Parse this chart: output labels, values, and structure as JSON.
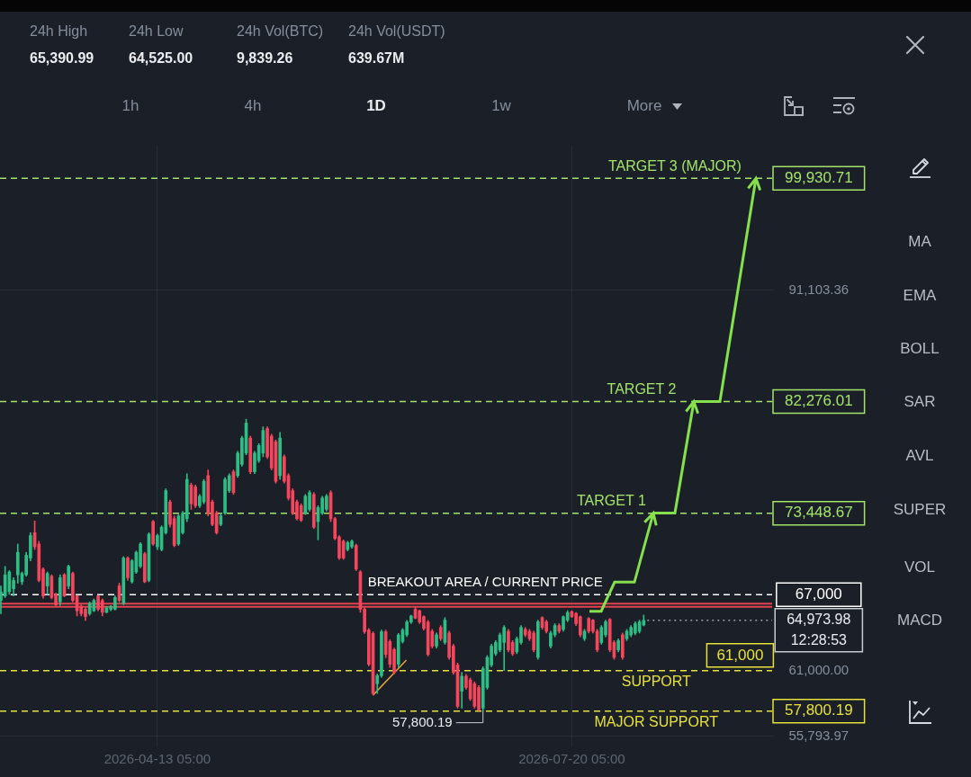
{
  "chart_data": {
    "type": "candlestick",
    "x": [
      "2026-03-07T05:00",
      "2026-03-08T05:00",
      "2026-03-09T05:00",
      "2026-03-10T05:00",
      "2026-03-11T05:00",
      "2026-03-12T05:00",
      "2026-03-13T05:00",
      "2026-03-14T05:00",
      "2026-03-15T05:00",
      "2026-03-16T05:00",
      "2026-03-17T05:00",
      "2026-03-18T05:00",
      "2026-03-19T05:00",
      "2026-03-20T05:00",
      "2026-03-21T05:00",
      "2026-03-22T05:00",
      "2026-03-23T05:00",
      "2026-03-24T05:00",
      "2026-03-25T05:00",
      "2026-03-26T05:00",
      "2026-03-27T05:00",
      "2026-03-28T05:00",
      "2026-03-29T05:00",
      "2026-03-30T05:00",
      "2026-03-31T05:00",
      "2026-04-01T05:00",
      "2026-04-02T05:00",
      "2026-04-03T05:00",
      "2026-04-04T05:00",
      "2026-04-05T05:00",
      "2026-04-06T05:00",
      "2026-04-07T05:00",
      "2026-04-08T05:00",
      "2026-04-09T05:00",
      "2026-04-10T05:00",
      "2026-04-11T05:00",
      "2026-04-12T05:00",
      "2026-04-13T05:00",
      "2026-04-14T05:00",
      "2026-04-15T05:00",
      "2026-04-16T05:00",
      "2026-04-17T05:00",
      "2026-04-18T05:00",
      "2026-04-19T05:00",
      "2026-04-20T05:00",
      "2026-04-21T05:00",
      "2026-04-22T05:00",
      "2026-04-23T05:00",
      "2026-04-24T05:00",
      "2026-04-25T05:00",
      "2026-04-26T05:00",
      "2026-04-27T05:00",
      "2026-04-28T05:00",
      "2026-04-29T05:00",
      "2026-04-30T05:00",
      "2026-05-01T05:00",
      "2026-05-02T05:00",
      "2026-05-03T05:00",
      "2026-05-04T05:00",
      "2026-05-05T05:00",
      "2026-05-06T05:00",
      "2026-05-07T05:00",
      "2026-05-08T05:00",
      "2026-05-09T05:00",
      "2026-05-10T05:00",
      "2026-05-11T05:00",
      "2026-05-12T05:00",
      "2026-05-13T05:00",
      "2026-05-14T05:00",
      "2026-05-15T05:00",
      "2026-05-16T05:00",
      "2026-05-17T05:00",
      "2026-05-18T05:00",
      "2026-05-19T05:00",
      "2026-05-20T05:00",
      "2026-05-21T05:00",
      "2026-05-22T05:00",
      "2026-05-23T05:00",
      "2026-05-24T05:00",
      "2026-05-25T05:00",
      "2026-05-26T05:00",
      "2026-05-27T05:00",
      "2026-05-28T05:00",
      "2026-05-29T05:00",
      "2026-05-30T05:00",
      "2026-05-31T05:00",
      "2026-06-01T05:00",
      "2026-06-02T05:00",
      "2026-06-03T05:00",
      "2026-06-04T05:00",
      "2026-06-05T05:00",
      "2026-06-06T05:00",
      "2026-06-07T05:00",
      "2026-06-08T05:00",
      "2026-06-09T05:00",
      "2026-06-10T05:00",
      "2026-06-11T05:00",
      "2026-06-12T05:00",
      "2026-06-13T05:00",
      "2026-06-14T05:00",
      "2026-06-15T05:00",
      "2026-06-16T05:00",
      "2026-06-17T05:00",
      "2026-06-18T05:00",
      "2026-06-19T05:00",
      "2026-06-20T05:00",
      "2026-06-21T05:00",
      "2026-06-22T05:00",
      "2026-06-23T05:00",
      "2026-06-24T05:00",
      "2026-06-25T05:00",
      "2026-06-26T05:00",
      "2026-06-27T05:00",
      "2026-06-28T05:00",
      "2026-06-29T05:00",
      "2026-06-30T05:00",
      "2026-07-01T05:00",
      "2026-07-02T05:00",
      "2026-07-03T05:00",
      "2026-07-04T05:00",
      "2026-07-05T05:00",
      "2026-07-06T05:00",
      "2026-07-07T05:00",
      "2026-07-08T05:00",
      "2026-07-09T05:00",
      "2026-07-10T05:00",
      "2026-07-11T05:00",
      "2026-07-12T05:00",
      "2026-07-13T05:00",
      "2026-07-14T05:00",
      "2026-07-15T05:00",
      "2026-07-16T05:00",
      "2026-07-17T05:00",
      "2026-07-18T05:00",
      "2026-07-19T05:00",
      "2026-07-20T05:00",
      "2026-07-21T05:00",
      "2026-07-22T05:00",
      "2026-07-23T05:00",
      "2026-07-24T05:00",
      "2026-07-25T05:00",
      "2026-07-26T05:00",
      "2026-07-27T05:00",
      "2026-07-28T05:00",
      "2026-07-29T05:00",
      "2026-07-30T05:00",
      "2026-07-31T05:00",
      "2026-08-01T05:00",
      "2026-08-02T05:00",
      "2026-08-03T05:00",
      "2026-08-04T05:00",
      "2026-08-05T05:00",
      "2026-08-06T05:00"
    ],
    "ohlc": [
      [
        66550,
        67690,
        65500,
        67240
      ],
      [
        66900,
        69240,
        66780,
        68570
      ],
      [
        67240,
        68910,
        67020,
        68800
      ],
      [
        67470,
        68350,
        66900,
        68130
      ],
      [
        68570,
        71010,
        67910,
        70350
      ],
      [
        68020,
        68800,
        67800,
        68680
      ],
      [
        68570,
        70350,
        68460,
        70120
      ],
      [
        69900,
        71900,
        69680,
        71680
      ],
      [
        71900,
        72830,
        70570,
        70790
      ],
      [
        71010,
        71230,
        68020,
        68130
      ],
      [
        69020,
        69130,
        66720,
        66900
      ],
      [
        67690,
        68800,
        67020,
        68680
      ],
      [
        68460,
        68570,
        66660,
        66780
      ],
      [
        67020,
        67130,
        66140,
        66200
      ],
      [
        66430,
        68570,
        66140,
        68350
      ],
      [
        68570,
        68680,
        66840,
        66900
      ],
      [
        67690,
        69350,
        67470,
        69240
      ],
      [
        68680,
        68800,
        66430,
        66550
      ],
      [
        66900,
        66950,
        65320,
        65730
      ],
      [
        66080,
        66200,
        65320,
        65500
      ],
      [
        65850,
        65960,
        64970,
        65270
      ],
      [
        65500,
        66430,
        65380,
        66310
      ],
      [
        65730,
        66660,
        65670,
        66550
      ],
      [
        66900,
        66950,
        65730,
        65850
      ],
      [
        66550,
        66660,
        65320,
        65610
      ],
      [
        65610,
        66080,
        65560,
        65960
      ],
      [
        65850,
        66140,
        65730,
        66080
      ],
      [
        65850,
        66900,
        65790,
        66780
      ],
      [
        67690,
        67910,
        66430,
        66550
      ],
      [
        66310,
        70010,
        66200,
        69900
      ],
      [
        69900,
        70010,
        68130,
        68350
      ],
      [
        68020,
        69790,
        67910,
        69680
      ],
      [
        68800,
        70460,
        68680,
        70350
      ],
      [
        69240,
        71120,
        69130,
        71010
      ],
      [
        70240,
        70350,
        67950,
        68020
      ],
      [
        68130,
        71900,
        68020,
        71790
      ],
      [
        72780,
        72890,
        70900,
        71010
      ],
      [
        70790,
        71790,
        70570,
        71680
      ],
      [
        70570,
        72450,
        70460,
        72340
      ],
      [
        71900,
        75380,
        71790,
        75230
      ],
      [
        74340,
        74490,
        72340,
        72560
      ],
      [
        73010,
        73230,
        70790,
        70900
      ],
      [
        71010,
        73340,
        70900,
        73230
      ],
      [
        71900,
        73600,
        71790,
        73450
      ],
      [
        73010,
        76570,
        72780,
        76120
      ],
      [
        75680,
        75830,
        73750,
        74190
      ],
      [
        75530,
        75680,
        73890,
        74040
      ],
      [
        74040,
        74930,
        73890,
        74790
      ],
      [
        74340,
        76120,
        74190,
        75970
      ],
      [
        76420,
        76870,
        73230,
        73450
      ],
      [
        74340,
        74490,
        72450,
        72560
      ],
      [
        73450,
        73600,
        71790,
        71900
      ],
      [
        72560,
        73450,
        72450,
        73230
      ],
      [
        73450,
        76270,
        73340,
        76120
      ],
      [
        75230,
        76570,
        75080,
        76420
      ],
      [
        76720,
        76870,
        74930,
        75080
      ],
      [
        76420,
        78350,
        76270,
        78200
      ],
      [
        77310,
        79540,
        77160,
        79390
      ],
      [
        78200,
        80880,
        78060,
        80580
      ],
      [
        79390,
        79540,
        76570,
        76720
      ],
      [
        76720,
        78350,
        76570,
        78200
      ],
      [
        77610,
        78950,
        77460,
        78800
      ],
      [
        78200,
        80280,
        77910,
        79990
      ],
      [
        80140,
        80280,
        77760,
        77910
      ],
      [
        79540,
        79690,
        76870,
        77020
      ],
      [
        79100,
        79240,
        75830,
        75970
      ],
      [
        76420,
        79840,
        76120,
        79390
      ],
      [
        77910,
        78060,
        75830,
        75970
      ],
      [
        76420,
        76570,
        74490,
        74640
      ],
      [
        75230,
        75380,
        73340,
        73450
      ],
      [
        74340,
        74490,
        72890,
        73010
      ],
      [
        74040,
        74190,
        72780,
        72890
      ],
      [
        73450,
        74930,
        73340,
        74790
      ],
      [
        73750,
        75230,
        73600,
        75080
      ],
      [
        74930,
        75080,
        72230,
        72340
      ],
      [
        72780,
        74040,
        71340,
        73890
      ],
      [
        73450,
        74790,
        73340,
        74640
      ],
      [
        73750,
        74930,
        73600,
        74790
      ],
      [
        75080,
        75230,
        72780,
        73010
      ],
      [
        73010,
        73120,
        71340,
        71450
      ],
      [
        71570,
        71680,
        69790,
        69900
      ],
      [
        71230,
        71340,
        69790,
        69900
      ],
      [
        70570,
        71230,
        70460,
        71120
      ],
      [
        70790,
        71340,
        70680,
        71230
      ],
      [
        70900,
        71010,
        68910,
        69020
      ],
      [
        68800,
        68910,
        65610,
        65850
      ],
      [
        65850,
        65960,
        63940,
        64070
      ],
      [
        64200,
        64330,
        61370,
        61500
      ],
      [
        63940,
        64070,
        59060,
        59190
      ],
      [
        59960,
        60730,
        59190,
        60600
      ],
      [
        60600,
        64200,
        60470,
        64070
      ],
      [
        64070,
        64200,
        62020,
        62270
      ],
      [
        63300,
        63430,
        61250,
        61500
      ],
      [
        62660,
        62790,
        60730,
        60860
      ],
      [
        61500,
        63940,
        61250,
        63820
      ],
      [
        63300,
        64330,
        63170,
        64200
      ],
      [
        63820,
        64970,
        63690,
        64840
      ],
      [
        64840,
        65380,
        64720,
        65320
      ],
      [
        65850,
        66020,
        65090,
        65150
      ],
      [
        65730,
        65790,
        64720,
        64840
      ],
      [
        65270,
        65320,
        64200,
        64330
      ],
      [
        64840,
        64970,
        62150,
        62270
      ],
      [
        64110,
        64260,
        62780,
        62930
      ],
      [
        62930,
        63970,
        62780,
        63820
      ],
      [
        64410,
        64560,
        63370,
        63520
      ],
      [
        63220,
        65190,
        63080,
        64990
      ],
      [
        63970,
        64110,
        61890,
        62040
      ],
      [
        62930,
        63080,
        60700,
        60850
      ],
      [
        61440,
        61590,
        58030,
        58180
      ],
      [
        59370,
        60850,
        58030,
        60550
      ],
      [
        60550,
        60700,
        59520,
        59660
      ],
      [
        60260,
        60410,
        58630,
        58770
      ],
      [
        59960,
        60110,
        58030,
        58180
      ],
      [
        59660,
        59810,
        57830,
        57880
      ],
      [
        58030,
        61300,
        57800.19,
        61150
      ],
      [
        59660,
        62190,
        59520,
        62040
      ],
      [
        61440,
        63080,
        61300,
        62930
      ],
      [
        62330,
        63370,
        62190,
        63220
      ],
      [
        62630,
        63970,
        62480,
        63820
      ],
      [
        63220,
        64560,
        61000,
        64410
      ],
      [
        64110,
        64260,
        62480,
        62630
      ],
      [
        63220,
        63370,
        62190,
        62330
      ],
      [
        62480,
        63670,
        62330,
        63520
      ],
      [
        63220,
        64560,
        63080,
        64410
      ],
      [
        64260,
        64410,
        63670,
        63820
      ],
      [
        64110,
        64260,
        63370,
        63520
      ],
      [
        63970,
        64110,
        62480,
        62630
      ],
      [
        62040,
        64990,
        61890,
        64860
      ],
      [
        65190,
        65260,
        64260,
        64410
      ],
      [
        64860,
        64990,
        63970,
        64110
      ],
      [
        62930,
        64110,
        62780,
        63970
      ],
      [
        63820,
        64710,
        63670,
        64560
      ],
      [
        64560,
        64710,
        63970,
        64110
      ],
      [
        64260,
        65320,
        64110,
        65260
      ],
      [
        64990,
        65730,
        64860,
        65590
      ],
      [
        65660,
        65730,
        65190,
        65260
      ],
      [
        65520,
        65590,
        64560,
        64710
      ],
      [
        65260,
        65320,
        63670,
        63820
      ],
      [
        63520,
        64260,
        63370,
        64110
      ],
      [
        65120,
        65190,
        63970,
        64110
      ],
      [
        64990,
        65050,
        63970,
        64110
      ],
      [
        64110,
        64260,
        62480,
        62630
      ],
      [
        63220,
        64560,
        63080,
        64410
      ],
      [
        63820,
        64990,
        63670,
        64860
      ],
      [
        65050,
        65120,
        62480,
        62630
      ],
      [
        63220,
        63370,
        61890,
        62040
      ],
      [
        62630,
        63520,
        62480,
        63370
      ],
      [
        63820,
        63970,
        61890,
        62040
      ],
      [
        63520,
        64260,
        63370,
        64110
      ],
      [
        63820,
        64560,
        63670,
        64410
      ],
      [
        63970,
        64860,
        63820,
        64710
      ],
      [
        64110,
        64990,
        63970,
        64860
      ],
      [
        64600,
        65390.99,
        64525,
        64973.98
      ]
    ],
    "colors": [
      "#2ebd85",
      "#2ebd85",
      "#2ebd85",
      "#2ebd85",
      "#2ebd85",
      "#2ebd85",
      "#2ebd85",
      "#2ebd85",
      "#f6465d",
      "#f6465d",
      "#f6465d",
      "#2ebd85",
      "#f6465d",
      "#f6465d",
      "#2ebd85",
      "#f6465d",
      "#2ebd85",
      "#f6465d",
      "#f6465d",
      "#f6465d",
      "#f6465d",
      "#2ebd85",
      "#2ebd85",
      "#f6465d",
      "#f6465d",
      "#2ebd85",
      "#2ebd85",
      "#2ebd85",
      "#f6465d",
      "#2ebd85",
      "#f6465d",
      "#2ebd85",
      "#2ebd85",
      "#2ebd85",
      "#f6465d",
      "#2ebd85",
      "#f6465d",
      "#2ebd85",
      "#2ebd85",
      "#2ebd85",
      "#f6465d",
      "#f6465d",
      "#2ebd85",
      "#2ebd85",
      "#2ebd85",
      "#f6465d",
      "#f6465d",
      "#2ebd85",
      "#2ebd85",
      "#f6465d",
      "#f6465d",
      "#f6465d",
      "#2ebd85",
      "#2ebd85",
      "#2ebd85",
      "#f6465d",
      "#2ebd85",
      "#2ebd85",
      "#2ebd85",
      "#f6465d",
      "#2ebd85",
      "#2ebd85",
      "#2ebd85",
      "#f6465d",
      "#f6465d",
      "#f6465d",
      "#2ebd85",
      "#f6465d",
      "#f6465d",
      "#f6465d",
      "#f6465d",
      "#f6465d",
      "#2ebd85",
      "#2ebd85",
      "#f6465d",
      "#2ebd85",
      "#2ebd85",
      "#2ebd85",
      "#f6465d",
      "#f6465d",
      "#f6465d",
      "#f6465d",
      "#2ebd85",
      "#2ebd85",
      "#f6465d",
      "#f6465d",
      "#f6465d",
      "#f6465d",
      "#f6465d",
      "#2ebd85",
      "#2ebd85",
      "#f6465d",
      "#f6465d",
      "#f6465d",
      "#2ebd85",
      "#2ebd85",
      "#2ebd85",
      "#2ebd85",
      "#f6465d",
      "#f6465d",
      "#f6465d",
      "#f6465d",
      "#f6465d",
      "#2ebd85",
      "#f6465d",
      "#2ebd85",
      "#f6465d",
      "#f6465d",
      "#f6465d",
      "#2ebd85",
      "#f6465d",
      "#f6465d",
      "#f6465d",
      "#f6465d",
      "#2ebd85",
      "#2ebd85",
      "#2ebd85",
      "#2ebd85",
      "#2ebd85",
      "#2ebd85",
      "#f6465d",
      "#f6465d",
      "#2ebd85",
      "#2ebd85",
      "#f6465d",
      "#f6465d",
      "#f6465d",
      "#2ebd85",
      "#f6465d",
      "#f6465d",
      "#2ebd85",
      "#2ebd85",
      "#f6465d",
      "#2ebd85",
      "#2ebd85",
      "#f6465d",
      "#f6465d",
      "#f6465d",
      "#2ebd85",
      "#f6465d",
      "#f6465d",
      "#f6465d",
      "#2ebd85",
      "#2ebd85",
      "#f6465d",
      "#f6465d",
      "#2ebd85",
      "#f6465d",
      "#2ebd85",
      "#2ebd85",
      "#2ebd85",
      "#2ebd85",
      "#2ebd85"
    ],
    "xlim": [
      "2026-03-07T00:00",
      "2026-09-06T00:00"
    ],
    "xticks": [
      {
        "value": "2026-04-13T05:00",
        "label": "2026-04-13 05:00"
      },
      {
        "value": "2026-07-20T05:00",
        "label": "2026-07-20 05:00"
      }
    ],
    "ylim": [
      55000,
      102500
    ],
    "yticks": [
      {
        "value": 55793.97,
        "label": "55,793.97"
      },
      {
        "value": 57800.19,
        "label": "57,800.19"
      },
      {
        "value": 61000,
        "label": "61,000.00"
      },
      {
        "value": 64973.98,
        "label": "64,973.98"
      },
      {
        "value": 67000,
        "label": "67,000"
      },
      {
        "value": 73448.67,
        "label": "73,448.67"
      },
      {
        "value": 82276.01,
        "label": "82,276.01"
      },
      {
        "value": 91103.36,
        "label": "91,103.36"
      },
      {
        "value": 99930.71,
        "label": "99,930.71"
      }
    ],
    "grid": true,
    "ref_lines": [
      {
        "axis": "y",
        "value": 99930.71,
        "label": "TARGET 3 (MAJOR)",
        "color": "#a3e36b",
        "line_style": "dashed"
      },
      {
        "axis": "y",
        "value": 82276.01,
        "label": "TARGET 2",
        "color": "#a3e36b",
        "line_style": "dashed"
      },
      {
        "axis": "y",
        "value": 73448.67,
        "label": "TARGET 1",
        "color": "#a3e36b",
        "line_style": "dashed"
      },
      {
        "axis": "y",
        "value": 67000,
        "label": "BREAKOUT AREA / CURRENT PRICE",
        "color": "#ffffff",
        "line_style": "dashed"
      },
      {
        "axis": "y",
        "value": 64973.98,
        "color": "#9aa0a8",
        "line_style": "dotted"
      },
      {
        "axis": "y",
        "value": 61000,
        "label": "SUPPORT",
        "color": "#e6e13c",
        "line_style": "dashed"
      },
      {
        "axis": "y",
        "value": 57800.19,
        "label": "MAJOR SUPPORT",
        "color": "#e6e13c",
        "line_style": "dashed"
      },
      {
        "axis": "y",
        "value": 66300,
        "color": "#e0434f",
        "line_style": "solid"
      },
      {
        "axis": "y",
        "value": 66050,
        "color": "#e0434f",
        "line_style": "solid"
      }
    ],
    "annotations": [
      "24h High",
      "65,390.99",
      "24h Low",
      "64,525.00",
      "24h Vol(BTC)",
      "9,839.26",
      "24h Vol(USDT)",
      "639.67M",
      "1h",
      "4h",
      "1D",
      "1w",
      "More",
      "MA",
      "EMA",
      "BOLL",
      "SAR",
      "AVL",
      "SUPER",
      "VOL",
      "MACD",
      "12:28:53",
      {
        "text": "57,800.19",
        "x": "2026-06-29T05:00",
        "y": 57800.19
      },
      {
        "text": "61,000",
        "x": "2026-08-29T00:00",
        "y": 61000
      }
    ]
  }
}
